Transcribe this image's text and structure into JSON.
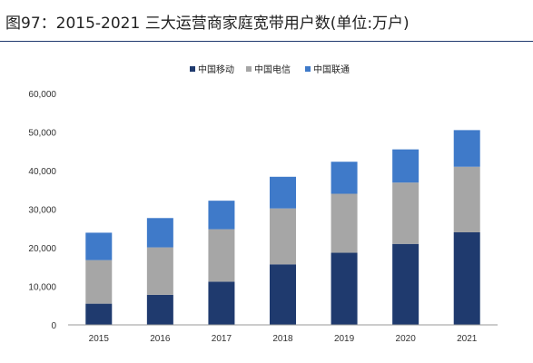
{
  "title": "图97：2015-2021 三大运营商家庭宽带用户数(单位:万户)",
  "colors": {
    "series": [
      "#1f3a6e",
      "#a6a6a6",
      "#3f7ac9"
    ],
    "axis": "#999999",
    "title_rule": "#1f3a6e"
  },
  "chart_data": {
    "type": "bar",
    "stacked": true,
    "categories": [
      "2015",
      "2016",
      "2017",
      "2018",
      "2019",
      "2020",
      "2021"
    ],
    "series": [
      {
        "name": "中国移动",
        "values": [
          5500,
          7800,
          11200,
          15700,
          18700,
          21000,
          24000
        ]
      },
      {
        "name": "中国电信",
        "values": [
          11300,
          12300,
          13600,
          14500,
          15300,
          15900,
          17000
        ]
      },
      {
        "name": "中国联通",
        "values": [
          7100,
          7600,
          7400,
          8200,
          8300,
          8600,
          9500
        ]
      }
    ],
    "ylim": [
      0,
      60000
    ],
    "y_ticks": [
      0,
      10000,
      20000,
      30000,
      40000,
      50000,
      60000
    ],
    "y_tick_labels": [
      "0",
      "10,000",
      "20,000",
      "30,000",
      "40,000",
      "50,000",
      "60,000"
    ],
    "legend_position": "top-center",
    "grid": false,
    "xlabel": "",
    "ylabel": ""
  }
}
